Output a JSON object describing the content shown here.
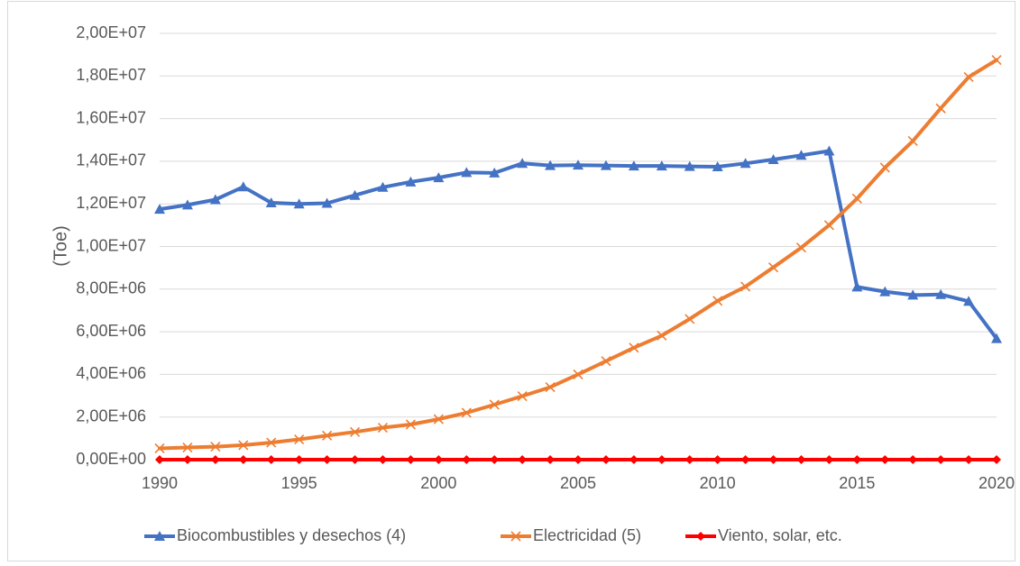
{
  "chart_data": {
    "type": "line",
    "title": "",
    "xlabel": "",
    "ylabel": "(Toe)",
    "x": [
      1990,
      1991,
      1992,
      1993,
      1994,
      1995,
      1996,
      1997,
      1998,
      1999,
      2000,
      2001,
      2002,
      2003,
      2004,
      2005,
      2006,
      2007,
      2008,
      2009,
      2010,
      2011,
      2012,
      2013,
      2014,
      2015,
      2016,
      2017,
      2018,
      2019,
      2020
    ],
    "x_ticks": [
      1990,
      1995,
      2000,
      2005,
      2010,
      2015,
      2020
    ],
    "x_tick_labels": [
      "1990",
      "1995",
      "2000",
      "2005",
      "2010",
      "2015",
      "2020"
    ],
    "ylim": [
      0,
      20000000
    ],
    "y_ticks": [
      0,
      2000000,
      4000000,
      6000000,
      8000000,
      10000000,
      12000000,
      14000000,
      16000000,
      18000000,
      20000000
    ],
    "y_tick_labels": [
      "0,00E+00",
      "2,00E+06",
      "4,00E+06",
      "6,00E+06",
      "8,00E+06",
      "1,00E+07",
      "1,20E+07",
      "1,40E+07",
      "1,60E+07",
      "1,80E+07",
      "2,00E+07"
    ],
    "grid": true,
    "legend_position": "bottom",
    "series": [
      {
        "name": "Biocombustibles y desechos (4)",
        "color": "#4472c4",
        "marker": "triangle",
        "values": [
          11750000,
          11950000,
          12200000,
          12800000,
          12050000,
          12000000,
          12030000,
          12400000,
          12780000,
          13030000,
          13230000,
          13470000,
          13450000,
          13900000,
          13800000,
          13820000,
          13800000,
          13780000,
          13780000,
          13760000,
          13740000,
          13900000,
          14080000,
          14280000,
          14480000,
          8100000,
          7880000,
          7720000,
          7750000,
          7430000,
          5680000
        ]
      },
      {
        "name": "Electricidad (5)",
        "color": "#ed7d31",
        "marker": "x",
        "values": [
          530000,
          570000,
          610000,
          680000,
          800000,
          950000,
          1130000,
          1300000,
          1500000,
          1650000,
          1900000,
          2200000,
          2580000,
          2980000,
          3400000,
          4000000,
          4620000,
          5250000,
          5820000,
          6600000,
          7450000,
          8120000,
          9020000,
          9950000,
          11000000,
          12250000,
          13700000,
          14950000,
          16480000,
          17950000,
          18750000
        ]
      },
      {
        "name": "Viento, solar, etc.",
        "color": "#ff0000",
        "marker": "diamond",
        "values": [
          0,
          0,
          0,
          0,
          0,
          0,
          0,
          0,
          0,
          0,
          0,
          0,
          0,
          0,
          0,
          0,
          0,
          0,
          0,
          0,
          0,
          0,
          0,
          0,
          0,
          0,
          0,
          0,
          0,
          0,
          0
        ]
      }
    ]
  }
}
